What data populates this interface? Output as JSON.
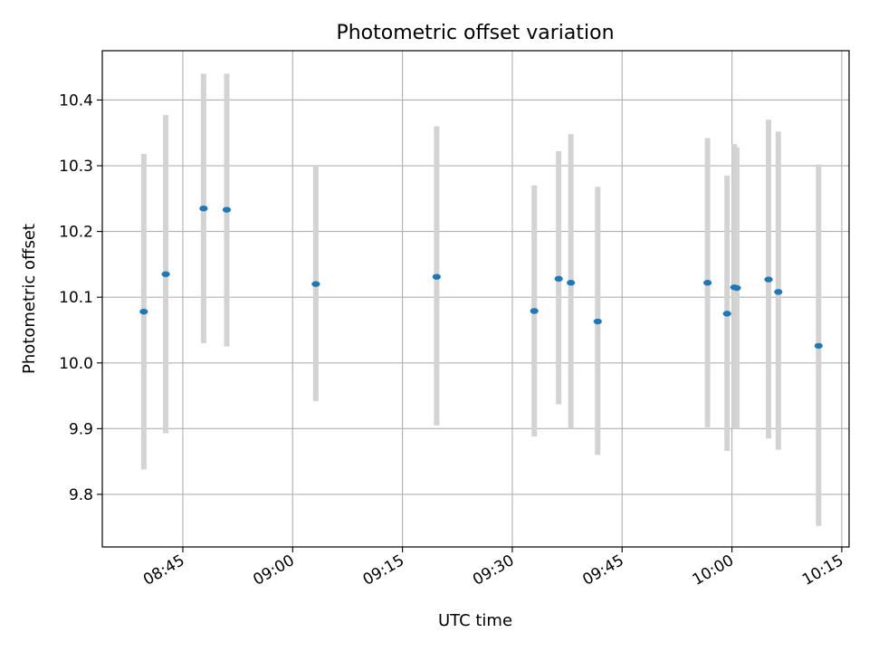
{
  "chart_data": {
    "type": "scatter",
    "title": "Photometric offset variation",
    "xlabel": "UTC time",
    "ylabel": "Photometric offset",
    "x_axis_kind": "time",
    "xlim": [
      "08:34",
      "10:16"
    ],
    "ylim": [
      9.72,
      10.475
    ],
    "grid": true,
    "x_ticks": [
      "08:45",
      "09:00",
      "09:15",
      "09:30",
      "09:45",
      "10:00",
      "10:15"
    ],
    "y_ticks": [
      "9.8",
      "9.9",
      "10.0",
      "10.1",
      "10.2",
      "10.3",
      "10.4"
    ],
    "colors": {
      "points": "#1f77b4",
      "error_bars": "#d3d3d3",
      "grid": "#b0b0b0"
    },
    "points": [
      {
        "x": "08:39:40",
        "y": 10.078,
        "y_low": 9.838,
        "y_high": 10.318
      },
      {
        "x": "08:42:40",
        "y": 10.135,
        "y_low": 9.893,
        "y_high": 10.377
      },
      {
        "x": "08:47:50",
        "y": 10.235,
        "y_low": 10.03,
        "y_high": 10.44
      },
      {
        "x": "08:51:00",
        "y": 10.233,
        "y_low": 10.025,
        "y_high": 10.44
      },
      {
        "x": "09:03:10",
        "y": 10.12,
        "y_low": 9.942,
        "y_high": 10.3
      },
      {
        "x": "09:19:40",
        "y": 10.131,
        "y_low": 9.905,
        "y_high": 10.36
      },
      {
        "x": "09:33:00",
        "y": 10.079,
        "y_low": 9.888,
        "y_high": 10.27
      },
      {
        "x": "09:36:20",
        "y": 10.128,
        "y_low": 9.937,
        "y_high": 10.322
      },
      {
        "x": "09:38:00",
        "y": 10.122,
        "y_low": 9.9,
        "y_high": 10.348
      },
      {
        "x": "09:41:40",
        "y": 10.063,
        "y_low": 9.86,
        "y_high": 10.268
      },
      {
        "x": "09:56:40",
        "y": 10.122,
        "y_low": 9.902,
        "y_high": 10.342
      },
      {
        "x": "09:59:20",
        "y": 10.075,
        "y_low": 9.866,
        "y_high": 10.285
      },
      {
        "x": "10:00:20",
        "y": 10.115,
        "y_low": 9.9,
        "y_high": 10.333
      },
      {
        "x": "10:00:40",
        "y": 10.114,
        "y_low": 9.9,
        "y_high": 10.328
      },
      {
        "x": "10:05:00",
        "y": 10.127,
        "y_low": 9.885,
        "y_high": 10.37
      },
      {
        "x": "10:06:20",
        "y": 10.108,
        "y_low": 9.868,
        "y_high": 10.352
      },
      {
        "x": "10:11:50",
        "y": 10.026,
        "y_low": 9.752,
        "y_high": 10.302
      }
    ]
  }
}
